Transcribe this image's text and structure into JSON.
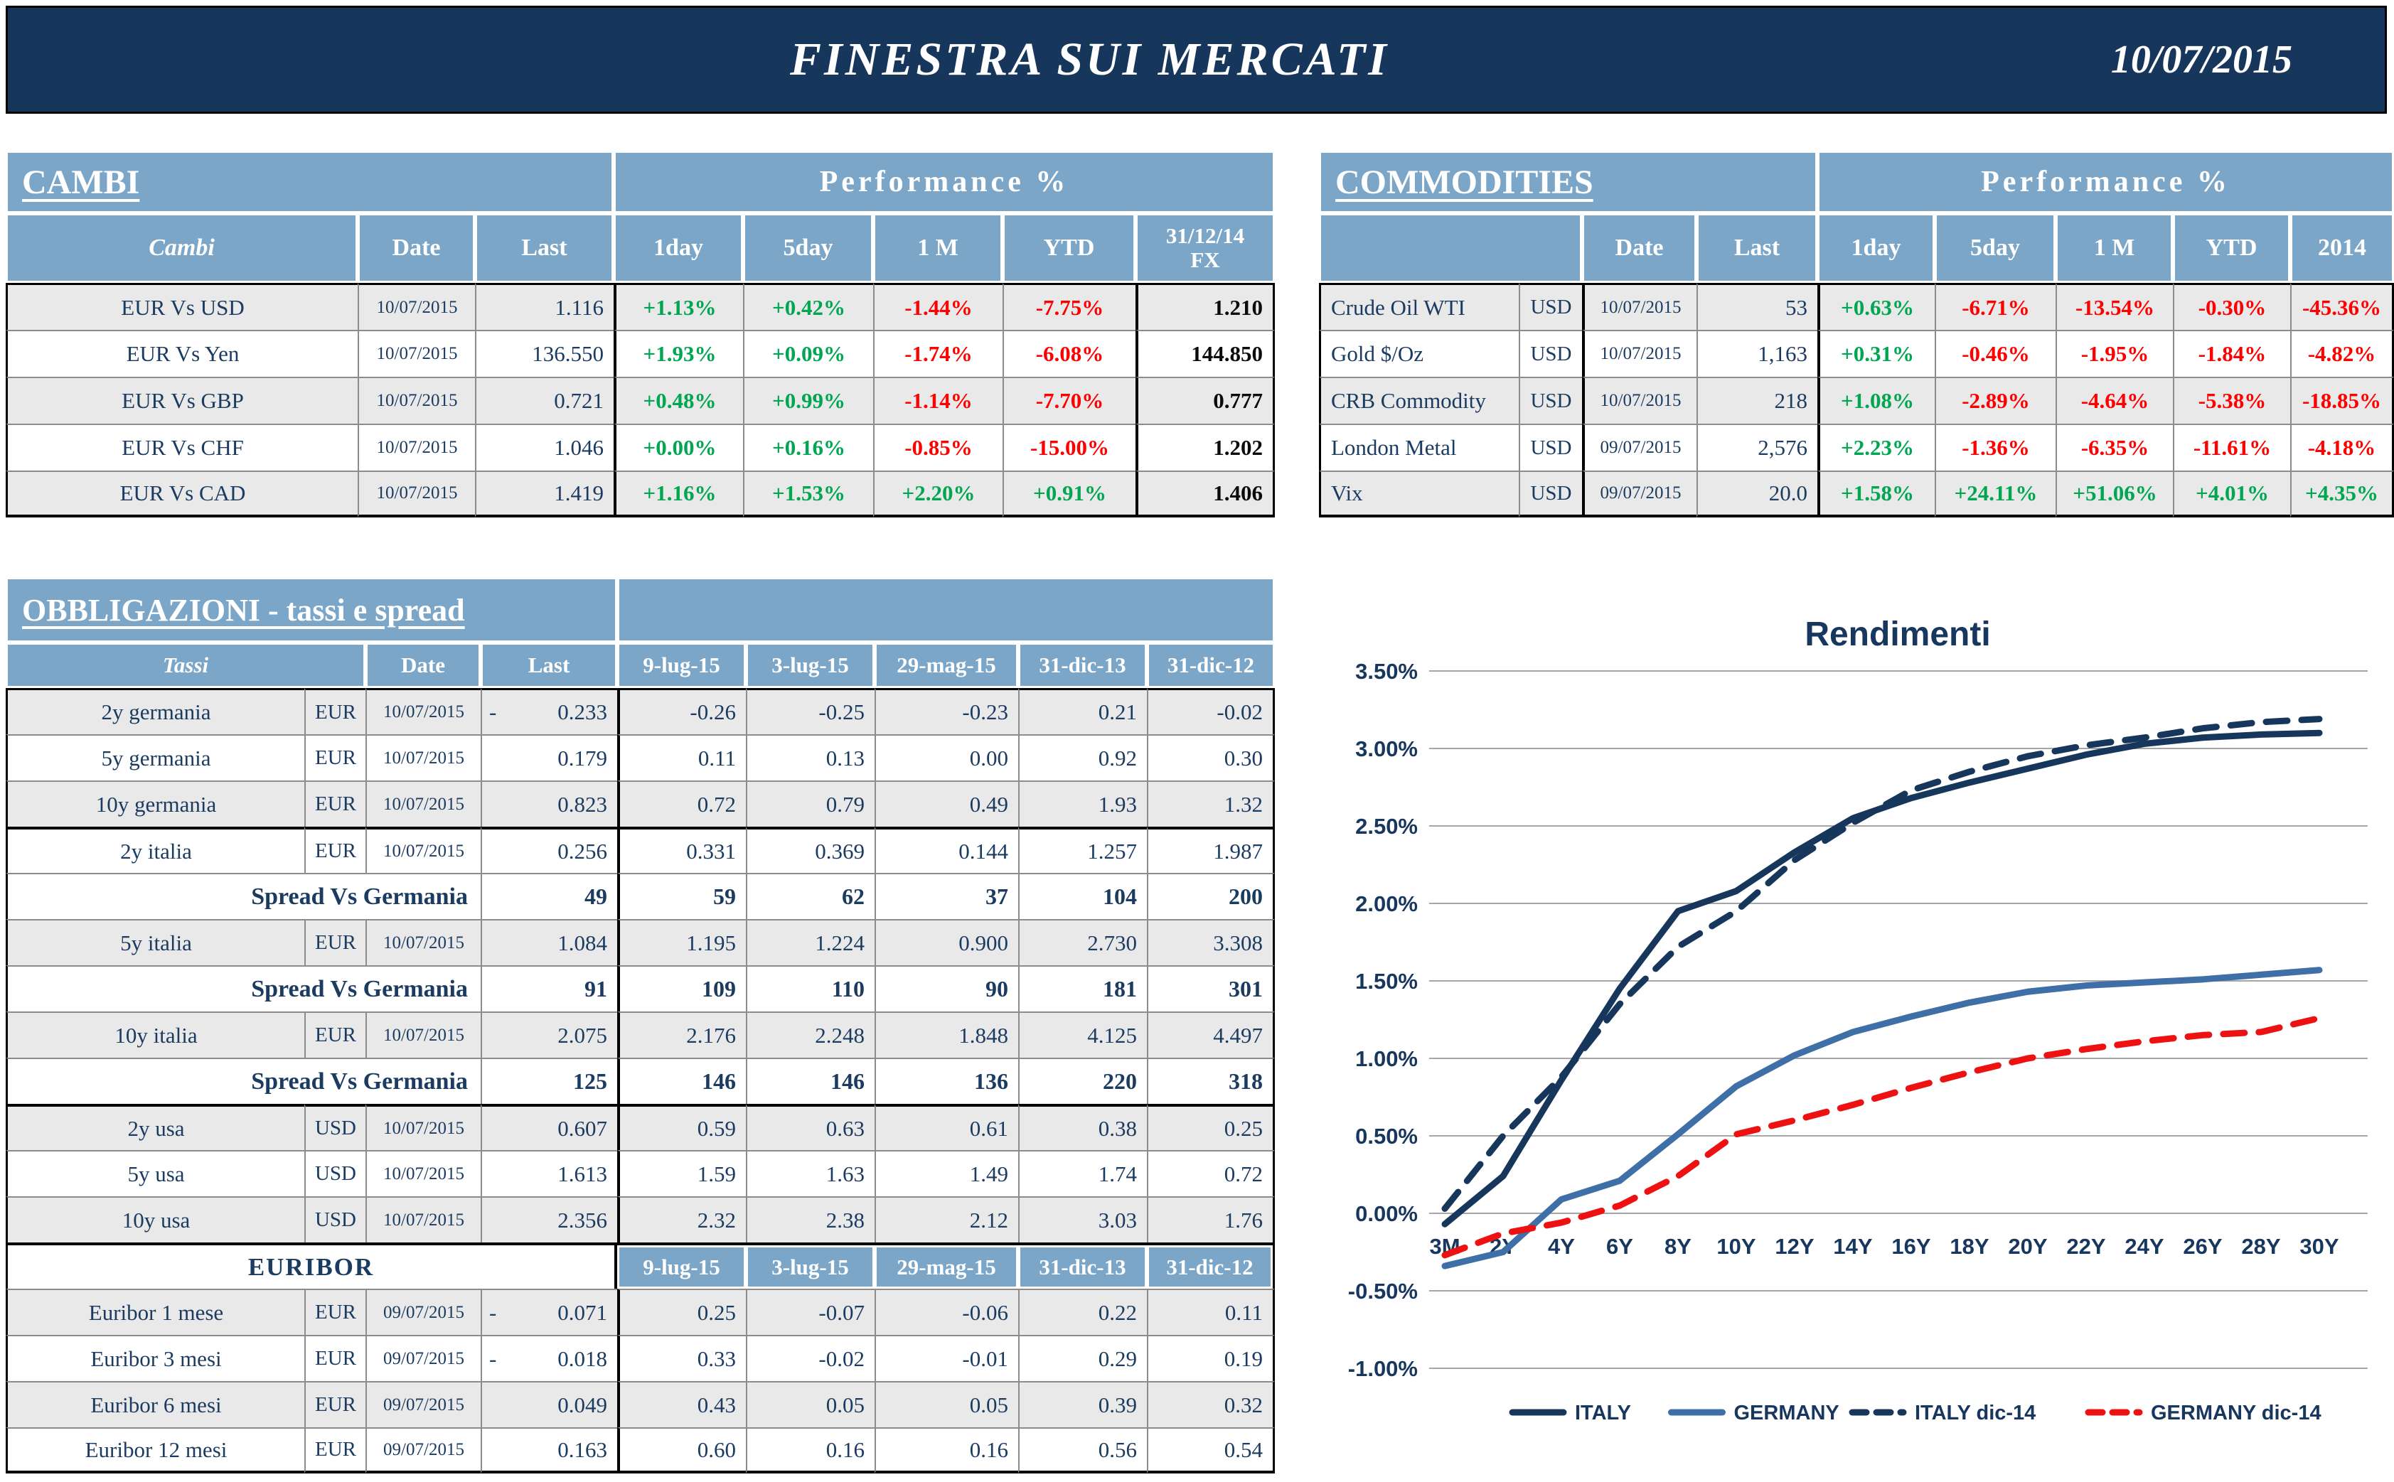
{
  "header": {
    "title": "FINESTRA SUI MERCATI",
    "date": "10/07/2015"
  },
  "colors": {
    "topbar_navy": "#16365C",
    "table_header_blue": "#7CA6C8",
    "positive_green": "#00A651",
    "negative_red": "#FF0000",
    "text_navy": "#1B3B61",
    "row_shade_gray": "#E9E9E9",
    "italy_line": "#16365C",
    "germany_line": "#3E6FA7",
    "germany_dec14_line": "#EE1111",
    "chart_gridline": "#A6A6A6"
  },
  "cambi": {
    "title": "CAMBI",
    "perf_header": "Performance  %",
    "col_headers": [
      "Cambi",
      "Date",
      "Last",
      "1day",
      "5day",
      "1 M",
      "YTD",
      "31/12/14\nFX"
    ],
    "rows": [
      {
        "name": "EUR Vs USD",
        "date": "10/07/2015",
        "last": "1.116",
        "perf": [
          "+1.13%",
          "+0.42%",
          "-1.44%",
          "-7.75%"
        ],
        "fx": "1.210"
      },
      {
        "name": "EUR Vs Yen",
        "date": "10/07/2015",
        "last": "136.550",
        "perf": [
          "+1.93%",
          "+0.09%",
          "-1.74%",
          "-6.08%"
        ],
        "fx": "144.850"
      },
      {
        "name": "EUR Vs GBP",
        "date": "10/07/2015",
        "last": "0.721",
        "perf": [
          "+0.48%",
          "+0.99%",
          "-1.14%",
          "-7.70%"
        ],
        "fx": "0.777"
      },
      {
        "name": "EUR Vs CHF",
        "date": "10/07/2015",
        "last": "1.046",
        "perf": [
          "+0.00%",
          "+0.16%",
          "-0.85%",
          "-15.00%"
        ],
        "fx": "1.202"
      },
      {
        "name": "EUR Vs CAD",
        "date": "10/07/2015",
        "last": "1.419",
        "perf": [
          "+1.16%",
          "+1.53%",
          "+2.20%",
          "+0.91%"
        ],
        "fx": "1.406"
      }
    ]
  },
  "commodities": {
    "title": "COMMODITIES",
    "perf_header": "Performance  %",
    "col_headers": [
      "",
      "Date",
      "Last",
      "1day",
      "5day",
      "1 M",
      "YTD",
      "2014"
    ],
    "rows": [
      {
        "name": "Crude Oil WTI",
        "cur": "USD",
        "date": "10/07/2015",
        "last": "53",
        "perf": [
          "+0.63%",
          "-6.71%",
          "-13.54%",
          "-0.30%",
          "-45.36%"
        ]
      },
      {
        "name": "Gold $/Oz",
        "cur": "USD",
        "date": "10/07/2015",
        "last": "1,163",
        "perf": [
          "+0.31%",
          "-0.46%",
          "-1.95%",
          "-1.84%",
          "-4.82%"
        ]
      },
      {
        "name": "CRB Commodity",
        "cur": "USD",
        "date": "10/07/2015",
        "last": "218",
        "perf": [
          "+1.08%",
          "-2.89%",
          "-4.64%",
          "-5.38%",
          "-18.85%"
        ]
      },
      {
        "name": "London Metal",
        "cur": "USD",
        "date": "09/07/2015",
        "last": "2,576",
        "perf": [
          "+2.23%",
          "-1.36%",
          "-6.35%",
          "-11.61%",
          "-4.18%"
        ]
      },
      {
        "name": "Vix",
        "cur": "USD",
        "date": "09/07/2015",
        "last": "20.0",
        "perf": [
          "+1.58%",
          "+24.11%",
          "+51.06%",
          "+4.01%",
          "+4.35%"
        ]
      }
    ]
  },
  "obbligazioni": {
    "title": "OBBLIGAZIONI - tassi e spread",
    "col_headers": [
      "Tassi",
      "Date",
      "Last",
      "9-lug-15",
      "3-lug-15",
      "29-mag-15",
      "31-dic-13",
      "31-dic-12"
    ],
    "rows": [
      {
        "type": "data",
        "name": "2y germania",
        "cur": "EUR",
        "date": "10/07/2015",
        "last": "0.233",
        "last_neg": true,
        "values": [
          "-0.26",
          "-0.25",
          "-0.23",
          "0.21",
          "-0.02"
        ],
        "shade": true
      },
      {
        "type": "data",
        "name": "5y germania",
        "cur": "EUR",
        "date": "10/07/2015",
        "last": "0.179",
        "values": [
          "0.11",
          "0.13",
          "0.00",
          "0.92",
          "0.30"
        ],
        "shade": false
      },
      {
        "type": "data",
        "name": "10y germania",
        "cur": "EUR",
        "date": "10/07/2015",
        "last": "0.823",
        "values": [
          "0.72",
          "0.79",
          "0.49",
          "1.93",
          "1.32"
        ],
        "shade": true
      },
      {
        "type": "data",
        "name": "2y italia",
        "cur": "EUR",
        "date": "10/07/2015",
        "last": "0.256",
        "values": [
          "0.331",
          "0.369",
          "0.144",
          "1.257",
          "1.987"
        ],
        "shade": false,
        "thick_top": true
      },
      {
        "type": "spread",
        "label": "Spread Vs Germania",
        "last": "49",
        "values": [
          "59",
          "62",
          "37",
          "104",
          "200"
        ]
      },
      {
        "type": "data",
        "name": "5y italia",
        "cur": "EUR",
        "date": "10/07/2015",
        "last": "1.084",
        "values": [
          "1.195",
          "1.224",
          "0.900",
          "2.730",
          "3.308"
        ],
        "shade": true
      },
      {
        "type": "spread",
        "label": "Spread Vs Germania",
        "last": "91",
        "values": [
          "109",
          "110",
          "90",
          "181",
          "301"
        ]
      },
      {
        "type": "data",
        "name": "10y italia",
        "cur": "EUR",
        "date": "10/07/2015",
        "last": "2.075",
        "values": [
          "2.176",
          "2.248",
          "1.848",
          "4.125",
          "4.497"
        ],
        "shade": true
      },
      {
        "type": "spread",
        "label": "Spread Vs Germania",
        "last": "125",
        "values": [
          "146",
          "146",
          "136",
          "220",
          "318"
        ]
      },
      {
        "type": "data",
        "name": "2y usa",
        "cur": "USD",
        "date": "10/07/2015",
        "last": "0.607",
        "values": [
          "0.59",
          "0.63",
          "0.61",
          "0.38",
          "0.25"
        ],
        "shade": true,
        "thick_top": true
      },
      {
        "type": "data",
        "name": "5y usa",
        "cur": "USD",
        "date": "10/07/2015",
        "last": "1.613",
        "values": [
          "1.59",
          "1.63",
          "1.49",
          "1.74",
          "0.72"
        ],
        "shade": false
      },
      {
        "type": "data",
        "name": "10y usa",
        "cur": "USD",
        "date": "10/07/2015",
        "last": "2.356",
        "values": [
          "2.32",
          "2.38",
          "2.12",
          "3.03",
          "1.76"
        ],
        "shade": true
      },
      {
        "type": "euribor_header",
        "label": "EURIBOR",
        "col_headers": [
          "9-lug-15",
          "3-lug-15",
          "29-mag-15",
          "31-dic-13",
          "31-dic-12"
        ],
        "thick_top": true
      },
      {
        "type": "data",
        "name": "Euribor 1 mese",
        "cur": "EUR",
        "date": "09/07/2015",
        "last": "0.071",
        "last_neg": true,
        "values": [
          "0.25",
          "-0.07",
          "-0.06",
          "0.22",
          "0.11"
        ],
        "shade": true
      },
      {
        "type": "data",
        "name": "Euribor 3 mesi",
        "cur": "EUR",
        "date": "09/07/2015",
        "last": "0.018",
        "last_neg": true,
        "values": [
          "0.33",
          "-0.02",
          "-0.01",
          "0.29",
          "0.19"
        ],
        "shade": false
      },
      {
        "type": "data",
        "name": "Euribor 6 mesi",
        "cur": "EUR",
        "date": "09/07/2015",
        "last": "0.049",
        "values": [
          "0.43",
          "0.05",
          "0.05",
          "0.39",
          "0.32"
        ],
        "shade": true
      },
      {
        "type": "data",
        "name": "Euribor 12 mesi",
        "cur": "EUR",
        "date": "09/07/2015",
        "last": "0.163",
        "values": [
          "0.60",
          "0.16",
          "0.16",
          "0.56",
          "0.54"
        ],
        "shade": false
      }
    ]
  },
  "chart_data": {
    "type": "line",
    "title": "Rendimenti",
    "categories": [
      "3M",
      "2Y",
      "4Y",
      "6Y",
      "8Y",
      "10Y",
      "12Y",
      "14Y",
      "16Y",
      "18Y",
      "20Y",
      "22Y",
      "24Y",
      "26Y",
      "28Y",
      "30Y"
    ],
    "y_axis": {
      "min": -1.0,
      "max": 3.5,
      "step": 0.5,
      "format": "percent"
    },
    "grid": "horizontal",
    "legend_position": "bottom",
    "series": [
      {
        "name": "ITALY",
        "color": "#16365C",
        "dashed": false,
        "values": [
          -0.07,
          0.24,
          0.86,
          1.45,
          1.95,
          2.08,
          2.33,
          2.55,
          2.68,
          2.78,
          2.87,
          2.96,
          3.03,
          3.07,
          3.09,
          3.1
        ]
      },
      {
        "name": "GERMANY",
        "color": "#3E6FA7",
        "dashed": false,
        "values": [
          -0.34,
          -0.25,
          0.09,
          0.21,
          0.51,
          0.82,
          1.02,
          1.17,
          1.27,
          1.36,
          1.43,
          1.47,
          1.49,
          1.51,
          1.54,
          1.57
        ]
      },
      {
        "name": "ITALY dic-14",
        "color": "#16365C",
        "dashed": true,
        "values": [
          0.03,
          0.5,
          0.88,
          1.35,
          1.72,
          1.95,
          2.28,
          2.52,
          2.73,
          2.85,
          2.95,
          3.02,
          3.07,
          3.13,
          3.17,
          3.19
        ]
      },
      {
        "name": "GERMANY dic-14",
        "color": "#EE1111",
        "dashed": true,
        "values": [
          -0.27,
          -0.13,
          -0.06,
          0.05,
          0.24,
          0.51,
          0.6,
          0.7,
          0.81,
          0.91,
          1.0,
          1.06,
          1.11,
          1.15,
          1.17,
          1.26
        ]
      }
    ]
  }
}
